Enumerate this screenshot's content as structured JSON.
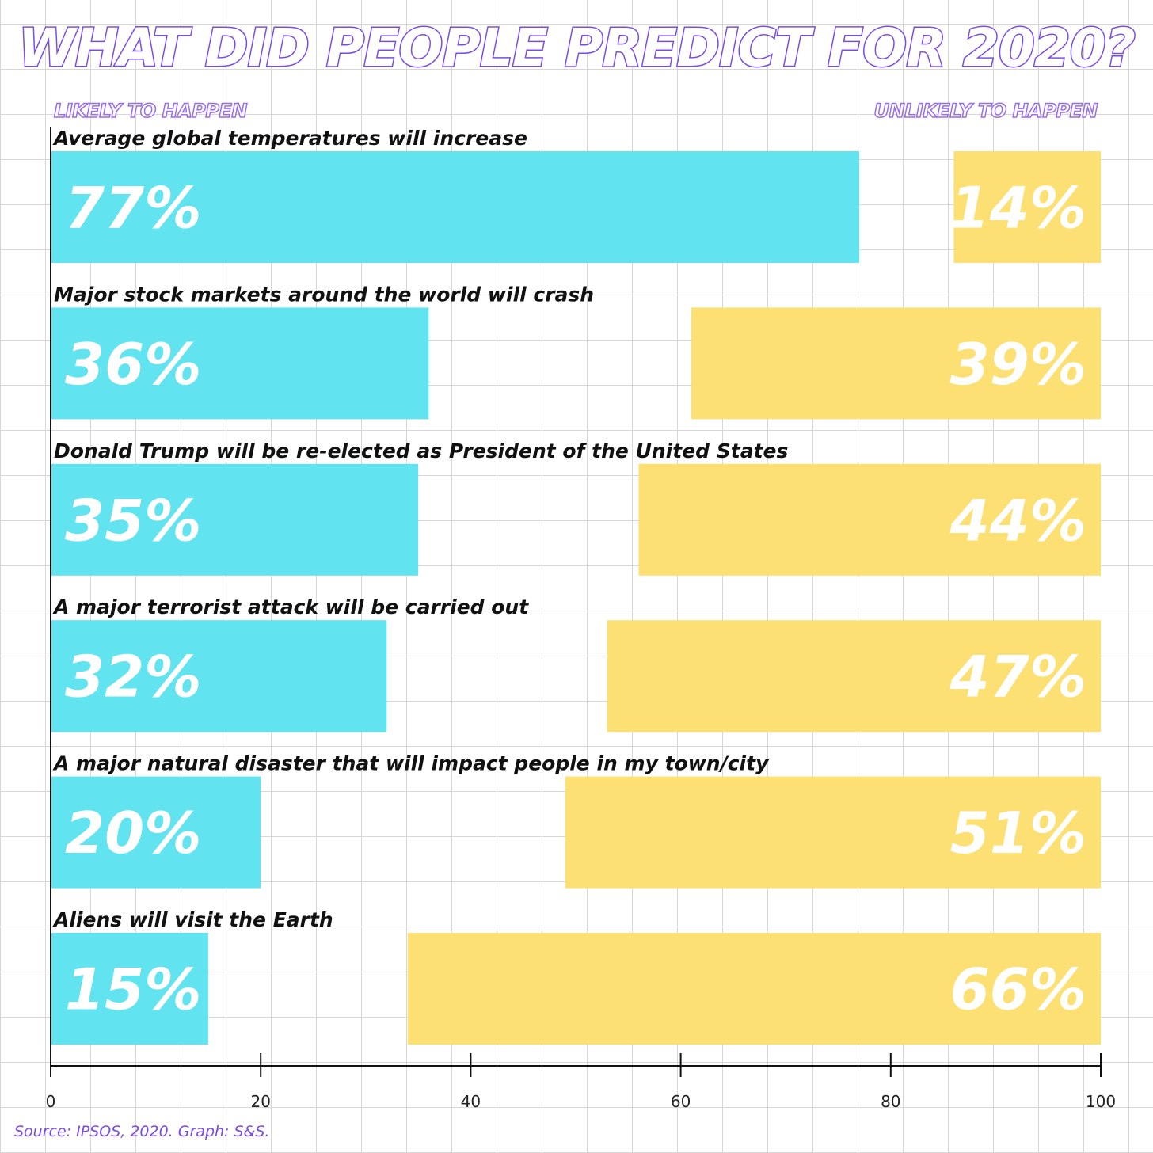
{
  "header": {
    "title": "WHAT DID PEOPLE PREDICT FOR 2020?",
    "left_label": "LIKELY TO HAPPEN",
    "right_label": "UNLIKELY TO HAPPEN"
  },
  "footer": {
    "source": "Source: IPSOS, 2020. Graph: S&S."
  },
  "colors": {
    "likely": "#62e3f0",
    "unlikely": "#fde073",
    "accent": "#7b4be6"
  },
  "chart_data": {
    "type": "bar",
    "orientation": "horizontal",
    "title": "WHAT DID PEOPLE PREDICT FOR 2020?",
    "categories": [
      "Average global temperatures will increase",
      "Major stock markets around the world will crash",
      "Donald Trump will be re-elected as President of the United States",
      "A major terrorist attack will be carried out",
      "A major natural disaster that will impact people in my town/city",
      "Aliens will visit the Earth"
    ],
    "series": [
      {
        "name": "LIKELY TO HAPPEN",
        "values": [
          77,
          36,
          35,
          32,
          20,
          15
        ],
        "labels": [
          "77%",
          "36%",
          "35%",
          "32%",
          "20%",
          "15%"
        ],
        "anchor": "left"
      },
      {
        "name": "UNLIKELY TO HAPPEN",
        "values": [
          14,
          39,
          44,
          47,
          51,
          66
        ],
        "labels": [
          "14%",
          "39%",
          "44%",
          "47%",
          "51%",
          "66%"
        ],
        "anchor": "right"
      }
    ],
    "xlim": [
      0,
      100
    ],
    "xticks": [
      0,
      20,
      40,
      60,
      80,
      100
    ],
    "xtick_labels": [
      "0",
      "20",
      "40",
      "60",
      "80",
      "100"
    ],
    "grid": true
  }
}
